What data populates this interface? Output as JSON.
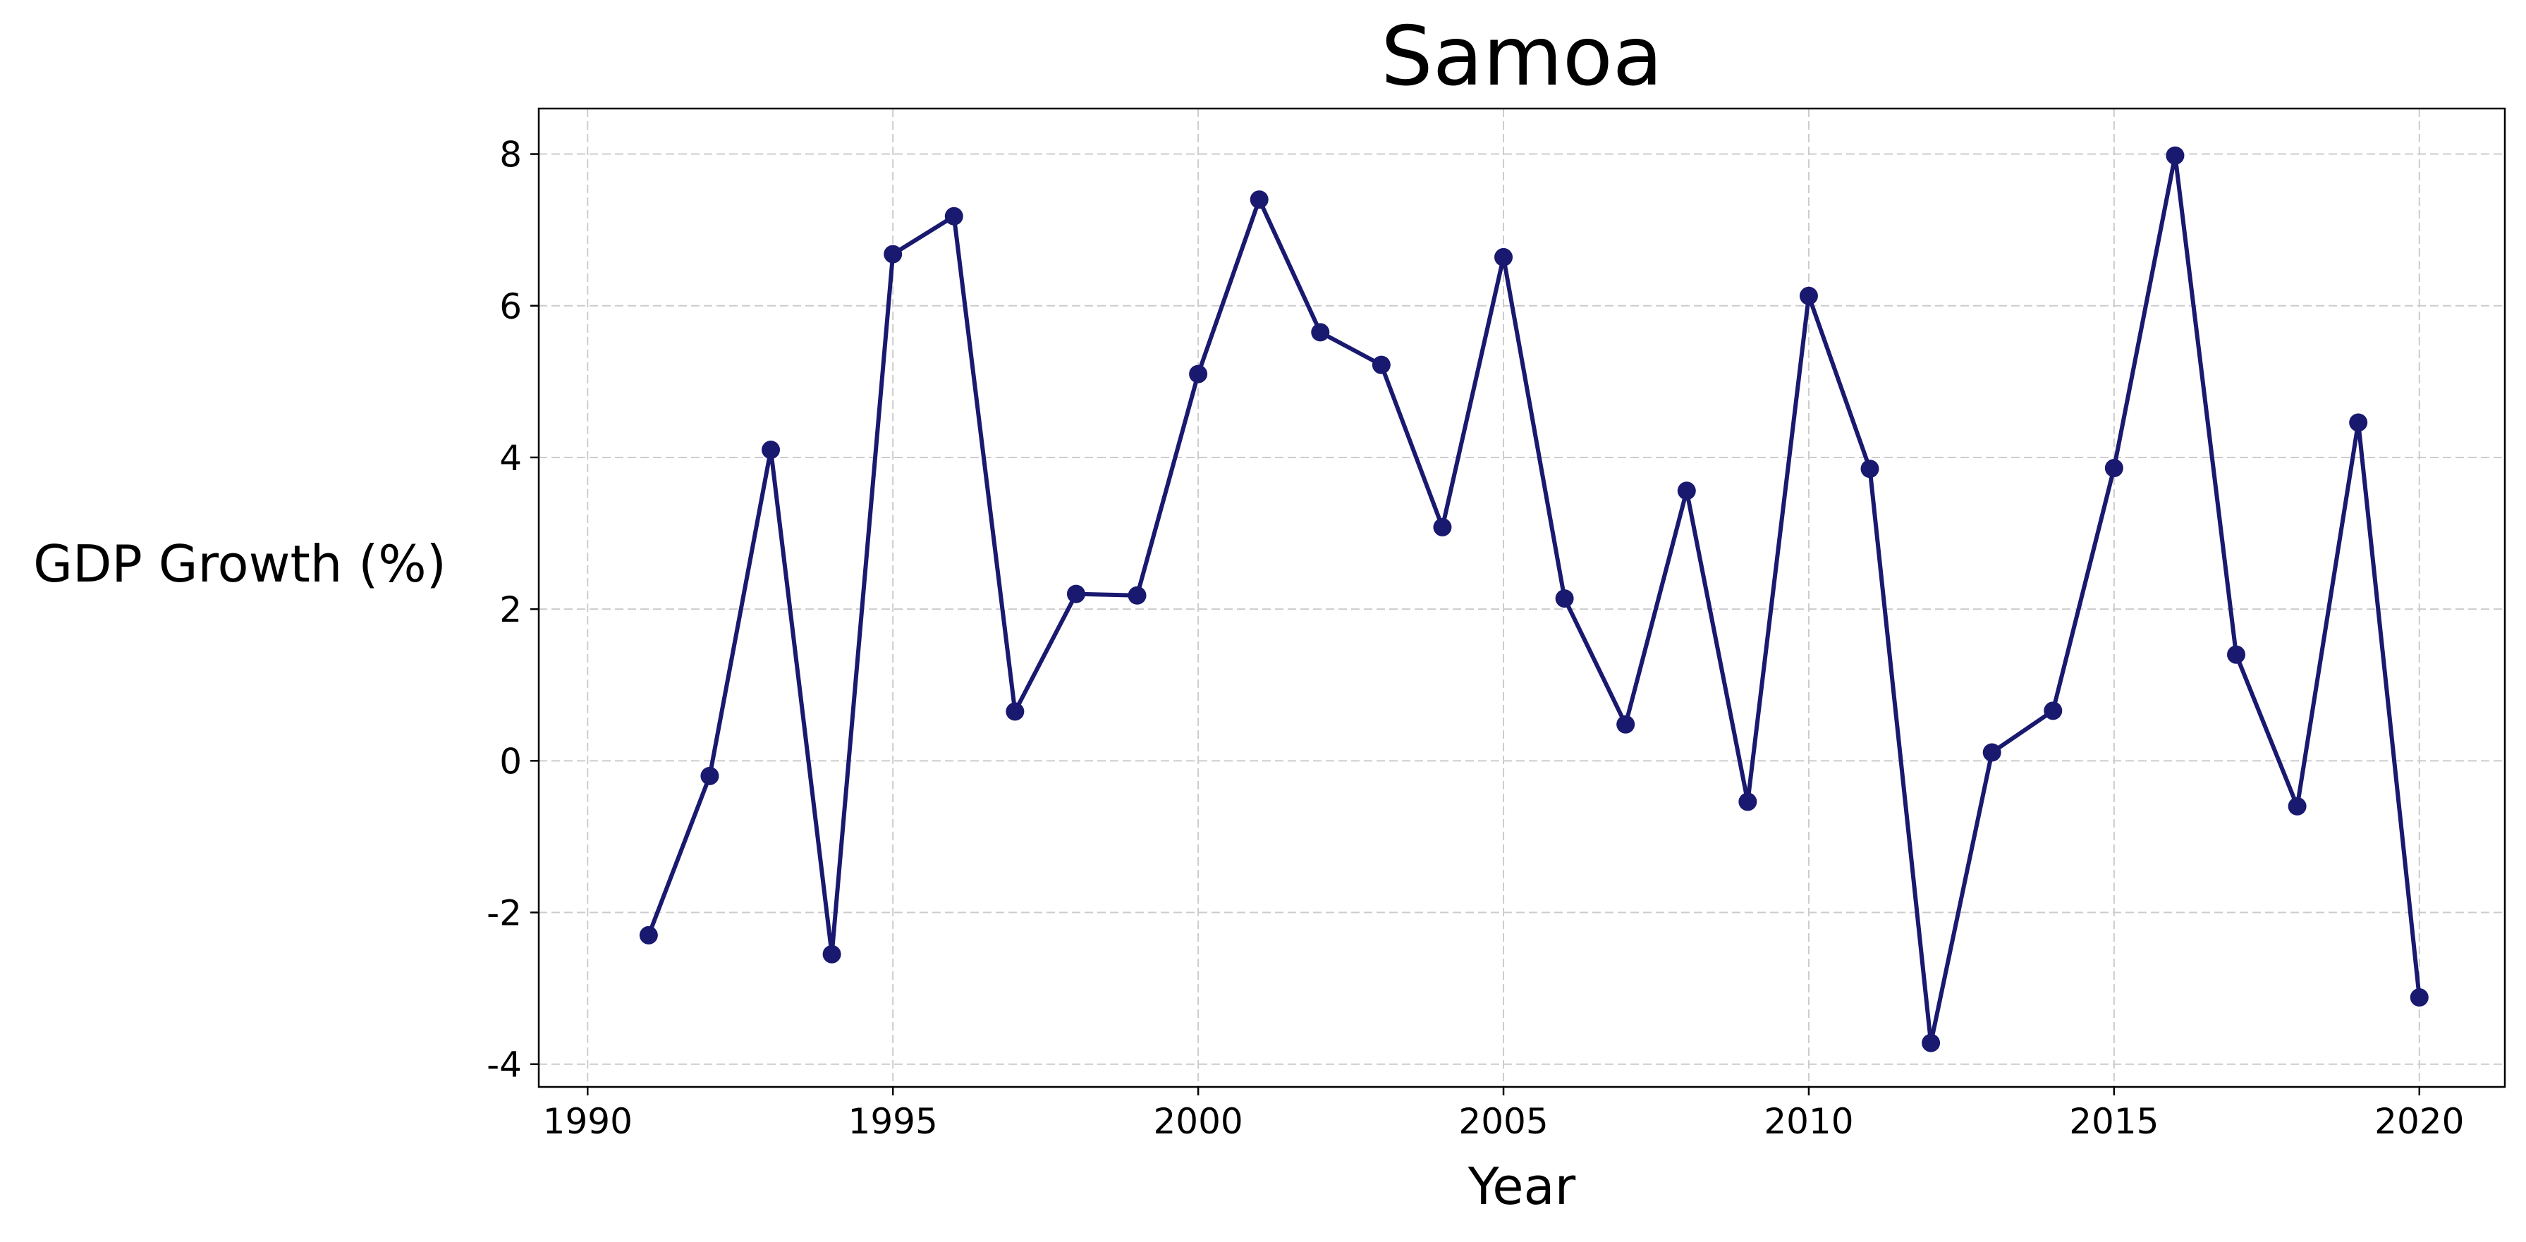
{
  "chart_data": {
    "type": "line",
    "title": "Samoa",
    "xlabel": "Year",
    "ylabel": "GDP Growth (%)",
    "xlim": [
      1989.2,
      2021.4
    ],
    "ylim": [
      -4.3,
      8.6
    ],
    "grid": true,
    "x_ticks": [
      1990,
      1995,
      2000,
      2005,
      2010,
      2015,
      2020
    ],
    "y_ticks": [
      -4,
      -2,
      0,
      2,
      4,
      6,
      8
    ],
    "line_color": "#191970",
    "series": [
      {
        "x": [
          1991,
          1992,
          1993,
          1994,
          1995,
          1996,
          1997,
          1998,
          1999,
          2000,
          2001,
          2002,
          2003,
          2004,
          2005,
          2006,
          2007,
          2008,
          2009,
          2010,
          2011,
          2012,
          2013,
          2014,
          2015,
          2016,
          2017,
          2018,
          2019,
          2020
        ],
        "y": [
          -2.3,
          -0.2,
          4.1,
          -2.55,
          6.68,
          7.18,
          0.65,
          2.2,
          2.18,
          5.1,
          7.4,
          5.65,
          5.22,
          3.08,
          6.64,
          2.14,
          0.48,
          3.56,
          -0.54,
          6.13,
          3.85,
          -3.72,
          0.11,
          0.66,
          3.86,
          7.98,
          1.4,
          -0.6,
          4.46,
          -3.12
        ]
      }
    ]
  }
}
